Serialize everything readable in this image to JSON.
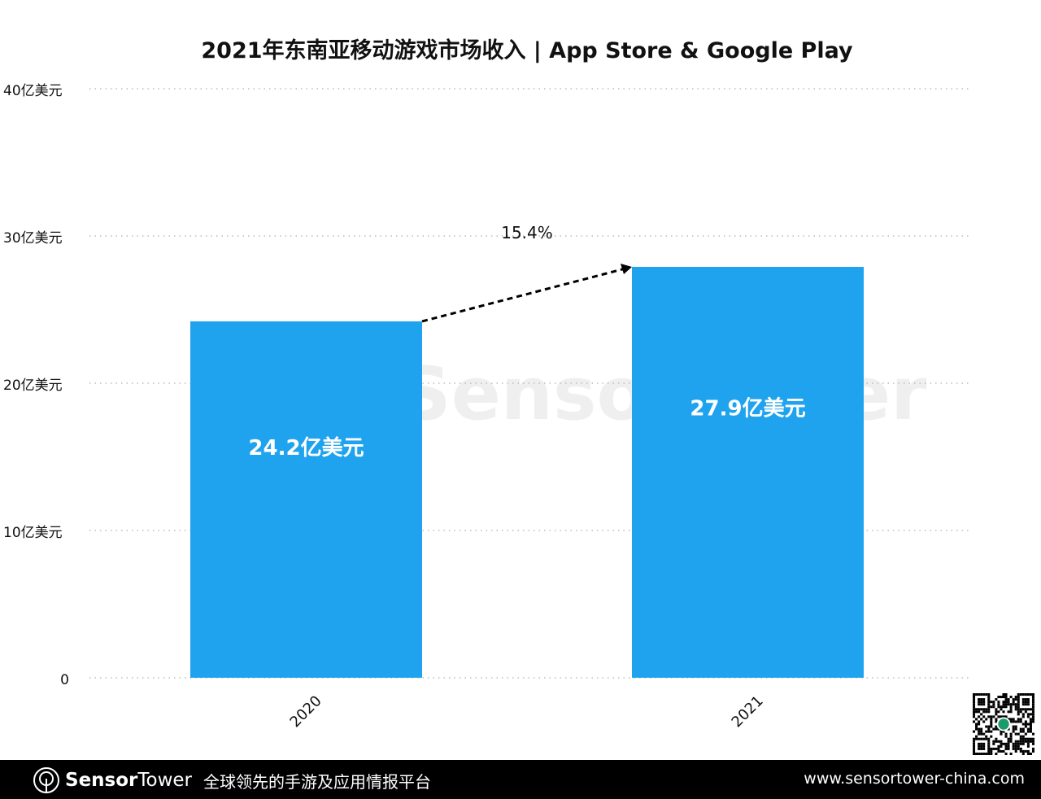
{
  "chart_data": {
    "type": "bar",
    "title": "2021年东南亚移动游戏市场收入 | App Store & Google Play",
    "categories": [
      "2020",
      "2021"
    ],
    "values": [
      24.2,
      27.9
    ],
    "data_labels": [
      "24.2亿美元",
      "27.9亿美元"
    ],
    "unit": "亿美元",
    "ylim": [
      0,
      40
    ],
    "yticks": [
      0,
      10,
      20,
      30,
      40
    ],
    "ytick_labels": [
      "0",
      "10亿美元",
      "20亿美元",
      "30亿美元",
      "40亿美元"
    ],
    "grid": "horizontal dotted",
    "bar_color": "#1FA3EE",
    "annotation": {
      "text": "15.4%",
      "type": "dashed arrow from 2020 to 2021"
    }
  },
  "watermark": "SensorTower",
  "footer": {
    "brand_bold": "Sensor",
    "brand_light": "Tower",
    "slogan": "全球领先的手游及应用情报平台",
    "url": "www.sensortower-china.com"
  }
}
